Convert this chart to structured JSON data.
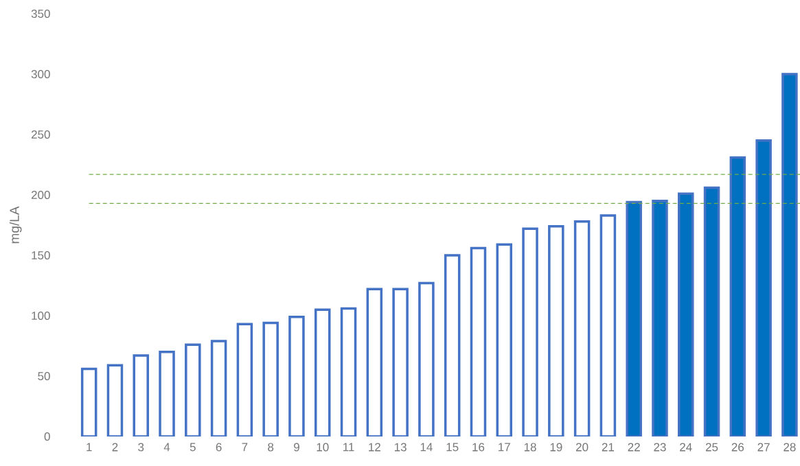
{
  "chart_data": {
    "type": "bar",
    "ylabel": "mg/LA",
    "categories": [
      "1",
      "2",
      "3",
      "4",
      "5",
      "6",
      "7",
      "8",
      "9",
      "10",
      "11",
      "12",
      "13",
      "14",
      "15",
      "16",
      "17",
      "18",
      "19",
      "20",
      "21",
      "22",
      "23",
      "24",
      "25",
      "26",
      "27",
      "28"
    ],
    "values": [
      56,
      59,
      67,
      70,
      76,
      79,
      93,
      94,
      99,
      105,
      106,
      122,
      122,
      127,
      150,
      156,
      159,
      172,
      174,
      178,
      183,
      194,
      195,
      201,
      206,
      231,
      245,
      300
    ],
    "colors": [
      "#4472c4",
      "#4472c4",
      "#4472c4",
      "#4472c4",
      "#4472c4",
      "#4472c4",
      "#4472c4",
      "#4472c4",
      "#4472c4",
      "#4472c4",
      "#4472c4",
      "#4472c4",
      "#4472c4",
      "#4472c4",
      "#4472c4",
      "#4472c4",
      "#4472c4",
      "#4472c4",
      "#4472c4",
      "#4472c4",
      "#4472c4",
      "#0070c0",
      "#0070c0",
      "#0070c0",
      "#0070c0",
      "#0070c0",
      "#0070c0",
      "#0070c0"
    ],
    "ylim": [
      0,
      350
    ],
    "yticks": [
      0,
      50,
      100,
      150,
      200,
      250,
      300,
      350
    ],
    "ref_lines": [
      {
        "axis": "y",
        "value": 217,
        "color": "#70ad47",
        "line_style": "dashed"
      },
      {
        "axis": "y",
        "value": 193,
        "color": "#70ad47",
        "line_style": "dashed"
      }
    ]
  }
}
